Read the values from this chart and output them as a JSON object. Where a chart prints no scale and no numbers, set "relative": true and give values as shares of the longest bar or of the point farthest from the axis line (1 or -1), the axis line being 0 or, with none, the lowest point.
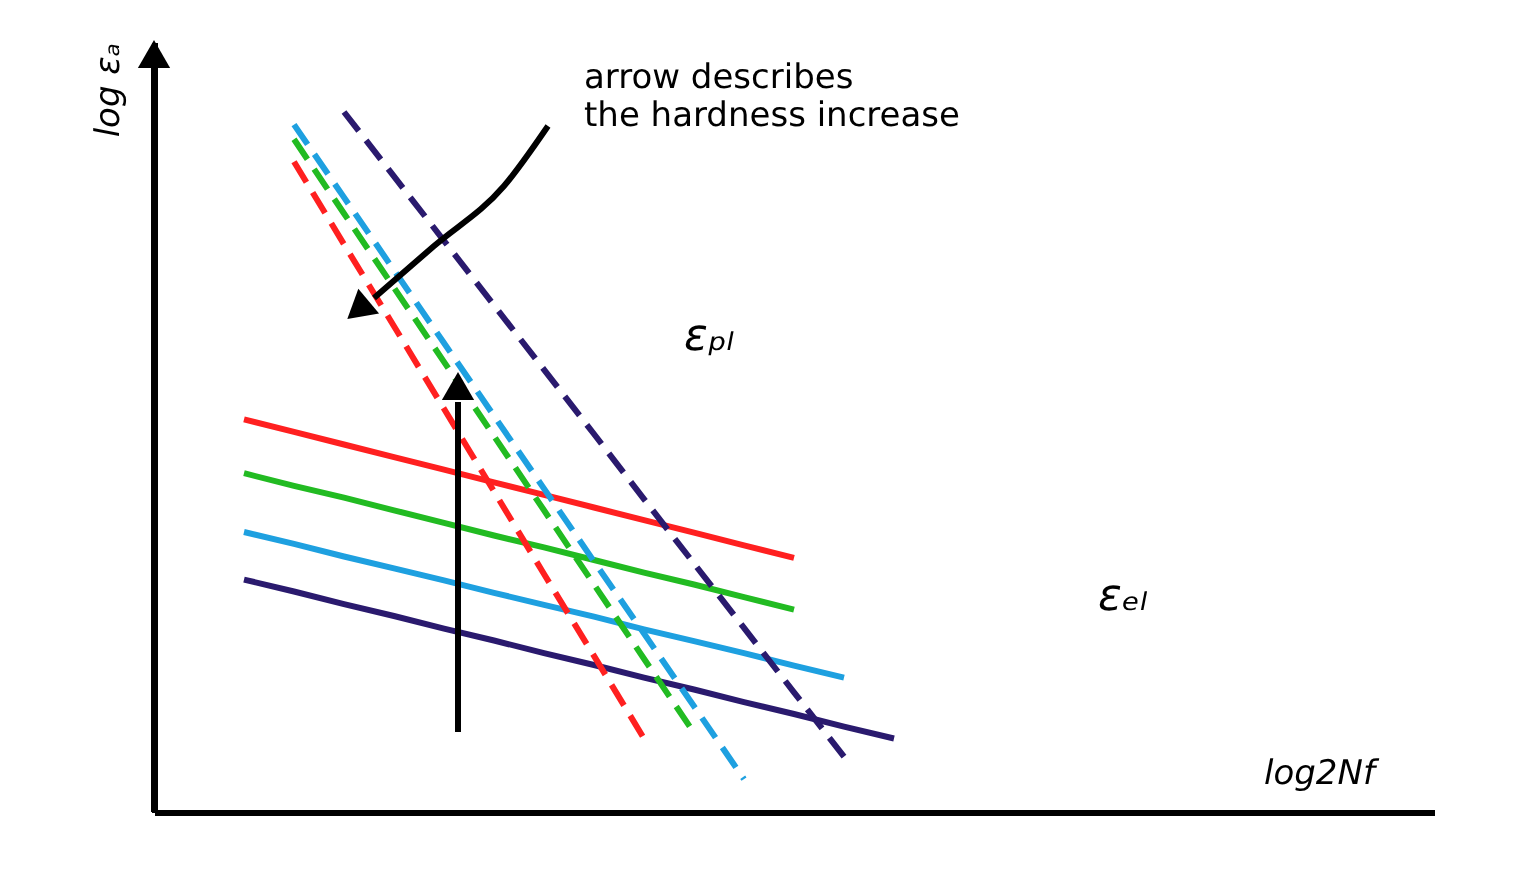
{
  "chart_data": {
    "type": "line",
    "relative": true,
    "ylabel": "log εₐ",
    "annotations": [
      "arrow describes\nthe hardness increase",
      "εₚₗ",
      "εₑₗ",
      "log2Nf"
    ],
    "grid": false,
    "marker": "none",
    "categories": [
      null,
      null,
      null,
      null,
      null,
      null,
      null,
      null,
      null,
      null,
      null,
      null,
      null,
      null
    ],
    "series": [
      {
        "color": "#ff2020",
        "line_style": "solid",
        "values": [
          0.561,
          0.543,
          0.525,
          0.507,
          0.489,
          0.471,
          0.453,
          0.435,
          0.417,
          0.399,
          0.381,
          0.363,
          null,
          null
        ]
      },
      {
        "color": "#22bb22",
        "line_style": "solid",
        "values": [
          0.484,
          0.466,
          0.449,
          0.431,
          0.413,
          0.395,
          0.378,
          0.36,
          0.342,
          0.325,
          0.307,
          0.289,
          null,
          null
        ]
      },
      {
        "color": "#1ea0e0",
        "line_style": "solid",
        "values": [
          0.4,
          0.383,
          0.365,
          0.348,
          0.331,
          0.313,
          0.296,
          0.279,
          0.261,
          0.244,
          0.227,
          0.209,
          0.192,
          null
        ]
      },
      {
        "color": "#2a1a6e",
        "line_style": "solid",
        "values": [
          0.332,
          0.315,
          0.297,
          0.28,
          0.262,
          0.245,
          0.227,
          0.21,
          0.192,
          0.175,
          0.157,
          0.14,
          0.122,
          0.105
        ]
      },
      {
        "color": "#ff2020",
        "line_style": "dashed",
        "values": [
          null,
          0.929,
          0.811,
          0.694,
          0.576,
          0.458,
          0.34,
          0.223,
          0.105,
          null,
          null,
          null,
          null,
          null
        ]
      },
      {
        "color": "#22bb22",
        "line_style": "dashed",
        "values": [
          null,
          0.961,
          0.855,
          0.749,
          0.643,
          0.537,
          0.431,
          0.325,
          0.219,
          0.113,
          null,
          null,
          null,
          null
        ]
      },
      {
        "color": "#1ea0e0",
        "line_style": "dashed",
        "values": [
          null,
          0.982,
          0.878,
          0.774,
          0.67,
          0.566,
          0.462,
          0.358,
          0.255,
          0.151,
          0.047,
          null,
          null,
          null
        ]
      },
      {
        "color": "#2a1a6e",
        "line_style": "dashed",
        "values": [
          null,
          null,
          1.0,
          0.908,
          0.816,
          0.724,
          0.632,
          0.54,
          0.447,
          0.355,
          0.263,
          0.171,
          0.079,
          null
        ]
      }
    ]
  }
}
